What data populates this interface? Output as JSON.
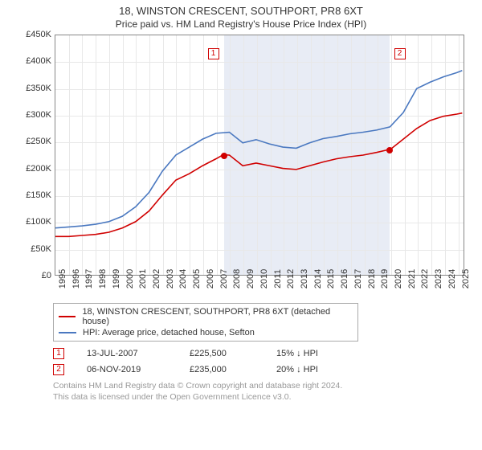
{
  "title": "18, WINSTON CRESCENT, SOUTHPORT, PR8 6XT",
  "subtitle": "Price paid vs. HM Land Registry's House Price Index (HPI)",
  "chart": {
    "type": "line",
    "background_color": "#ffffff",
    "grid_color": "#e8e8e8",
    "border_color": "#888888",
    "shaded_band_color": "#e8ecf5",
    "shaded_band_xrange": [
      2007.53,
      2019.85
    ],
    "xlim": [
      1995,
      2025.5
    ],
    "ylim": [
      0,
      450000
    ],
    "ytick_step": 50000,
    "xtick_step": 1,
    "ytick_labels": [
      "£0",
      "£50K",
      "£100K",
      "£150K",
      "£200K",
      "£250K",
      "£300K",
      "£350K",
      "£400K",
      "£450K"
    ],
    "xtick_labels": [
      "1995",
      "1996",
      "1997",
      "1998",
      "1999",
      "2000",
      "2001",
      "2002",
      "2003",
      "2004",
      "2005",
      "2006",
      "2007",
      "2008",
      "2009",
      "2010",
      "2011",
      "2012",
      "2013",
      "2014",
      "2015",
      "2016",
      "2017",
      "2018",
      "2019",
      "2020",
      "2021",
      "2022",
      "2023",
      "2024",
      "2025"
    ],
    "label_fontsize": 11,
    "title_fontsize": 13,
    "line_width": 1.6,
    "series": [
      {
        "name": "18, WINSTON CRESCENT, SOUTHPORT, PR8 6XT (detached house)",
        "color": "#d00000",
        "x": [
          1995,
          1996,
          1997,
          1998,
          1999,
          2000,
          2001,
          2002,
          2003,
          2004,
          2005,
          2006,
          2007,
          2007.53,
          2008,
          2009,
          2010,
          2011,
          2012,
          2013,
          2014,
          2015,
          2016,
          2017,
          2018,
          2019,
          2019.85,
          2020,
          2021,
          2022,
          2023,
          2024,
          2025,
          2025.4
        ],
        "y": [
          72000,
          72000,
          74000,
          76000,
          80000,
          88000,
          100000,
          120000,
          150000,
          178000,
          190000,
          205000,
          218000,
          225500,
          225000,
          205000,
          210000,
          205000,
          200000,
          198000,
          205000,
          212000,
          218000,
          222000,
          225000,
          230000,
          235000,
          235000,
          255000,
          275000,
          290000,
          298000,
          302000,
          304000
        ]
      },
      {
        "name": "HPI: Average price, detached house, Sefton",
        "color": "#4a78c0",
        "x": [
          1995,
          1996,
          1997,
          1998,
          1999,
          2000,
          2001,
          2002,
          2003,
          2004,
          2005,
          2006,
          2007,
          2008,
          2009,
          2010,
          2011,
          2012,
          2013,
          2014,
          2015,
          2016,
          2017,
          2018,
          2019,
          2020,
          2021,
          2022,
          2023,
          2024,
          2025,
          2025.4
        ],
        "y": [
          88000,
          90000,
          92000,
          95000,
          100000,
          110000,
          128000,
          155000,
          195000,
          225000,
          240000,
          255000,
          266000,
          268000,
          248000,
          254000,
          246000,
          240000,
          238000,
          248000,
          256000,
          260000,
          265000,
          268000,
          272000,
          278000,
          305000,
          350000,
          362000,
          372000,
          380000,
          384000
        ]
      }
    ],
    "markers": [
      {
        "label": "1",
        "x": 2007.53,
        "y": 225500,
        "box_color": "#d00000",
        "dot_color": "#d00000",
        "box_side": "left"
      },
      {
        "label": "2",
        "x": 2019.85,
        "y": 235000,
        "box_color": "#d00000",
        "dot_color": "#d00000",
        "box_side": "right"
      }
    ]
  },
  "legend": {
    "items": [
      {
        "color": "#d00000",
        "label": "18, WINSTON CRESCENT, SOUTHPORT, PR8 6XT (detached house)"
      },
      {
        "color": "#4a78c0",
        "label": "HPI: Average price, detached house, Sefton"
      }
    ]
  },
  "annotations": [
    {
      "num": "1",
      "color": "#d00000",
      "date": "13-JUL-2007",
      "price": "£225,500",
      "delta": "15% ↓ HPI"
    },
    {
      "num": "2",
      "color": "#d00000",
      "date": "06-NOV-2019",
      "price": "£235,000",
      "delta": "20% ↓ HPI"
    }
  ],
  "footer": {
    "line1": "Contains HM Land Registry data © Crown copyright and database right 2024.",
    "line2": "This data is licensed under the Open Government Licence v3.0."
  }
}
